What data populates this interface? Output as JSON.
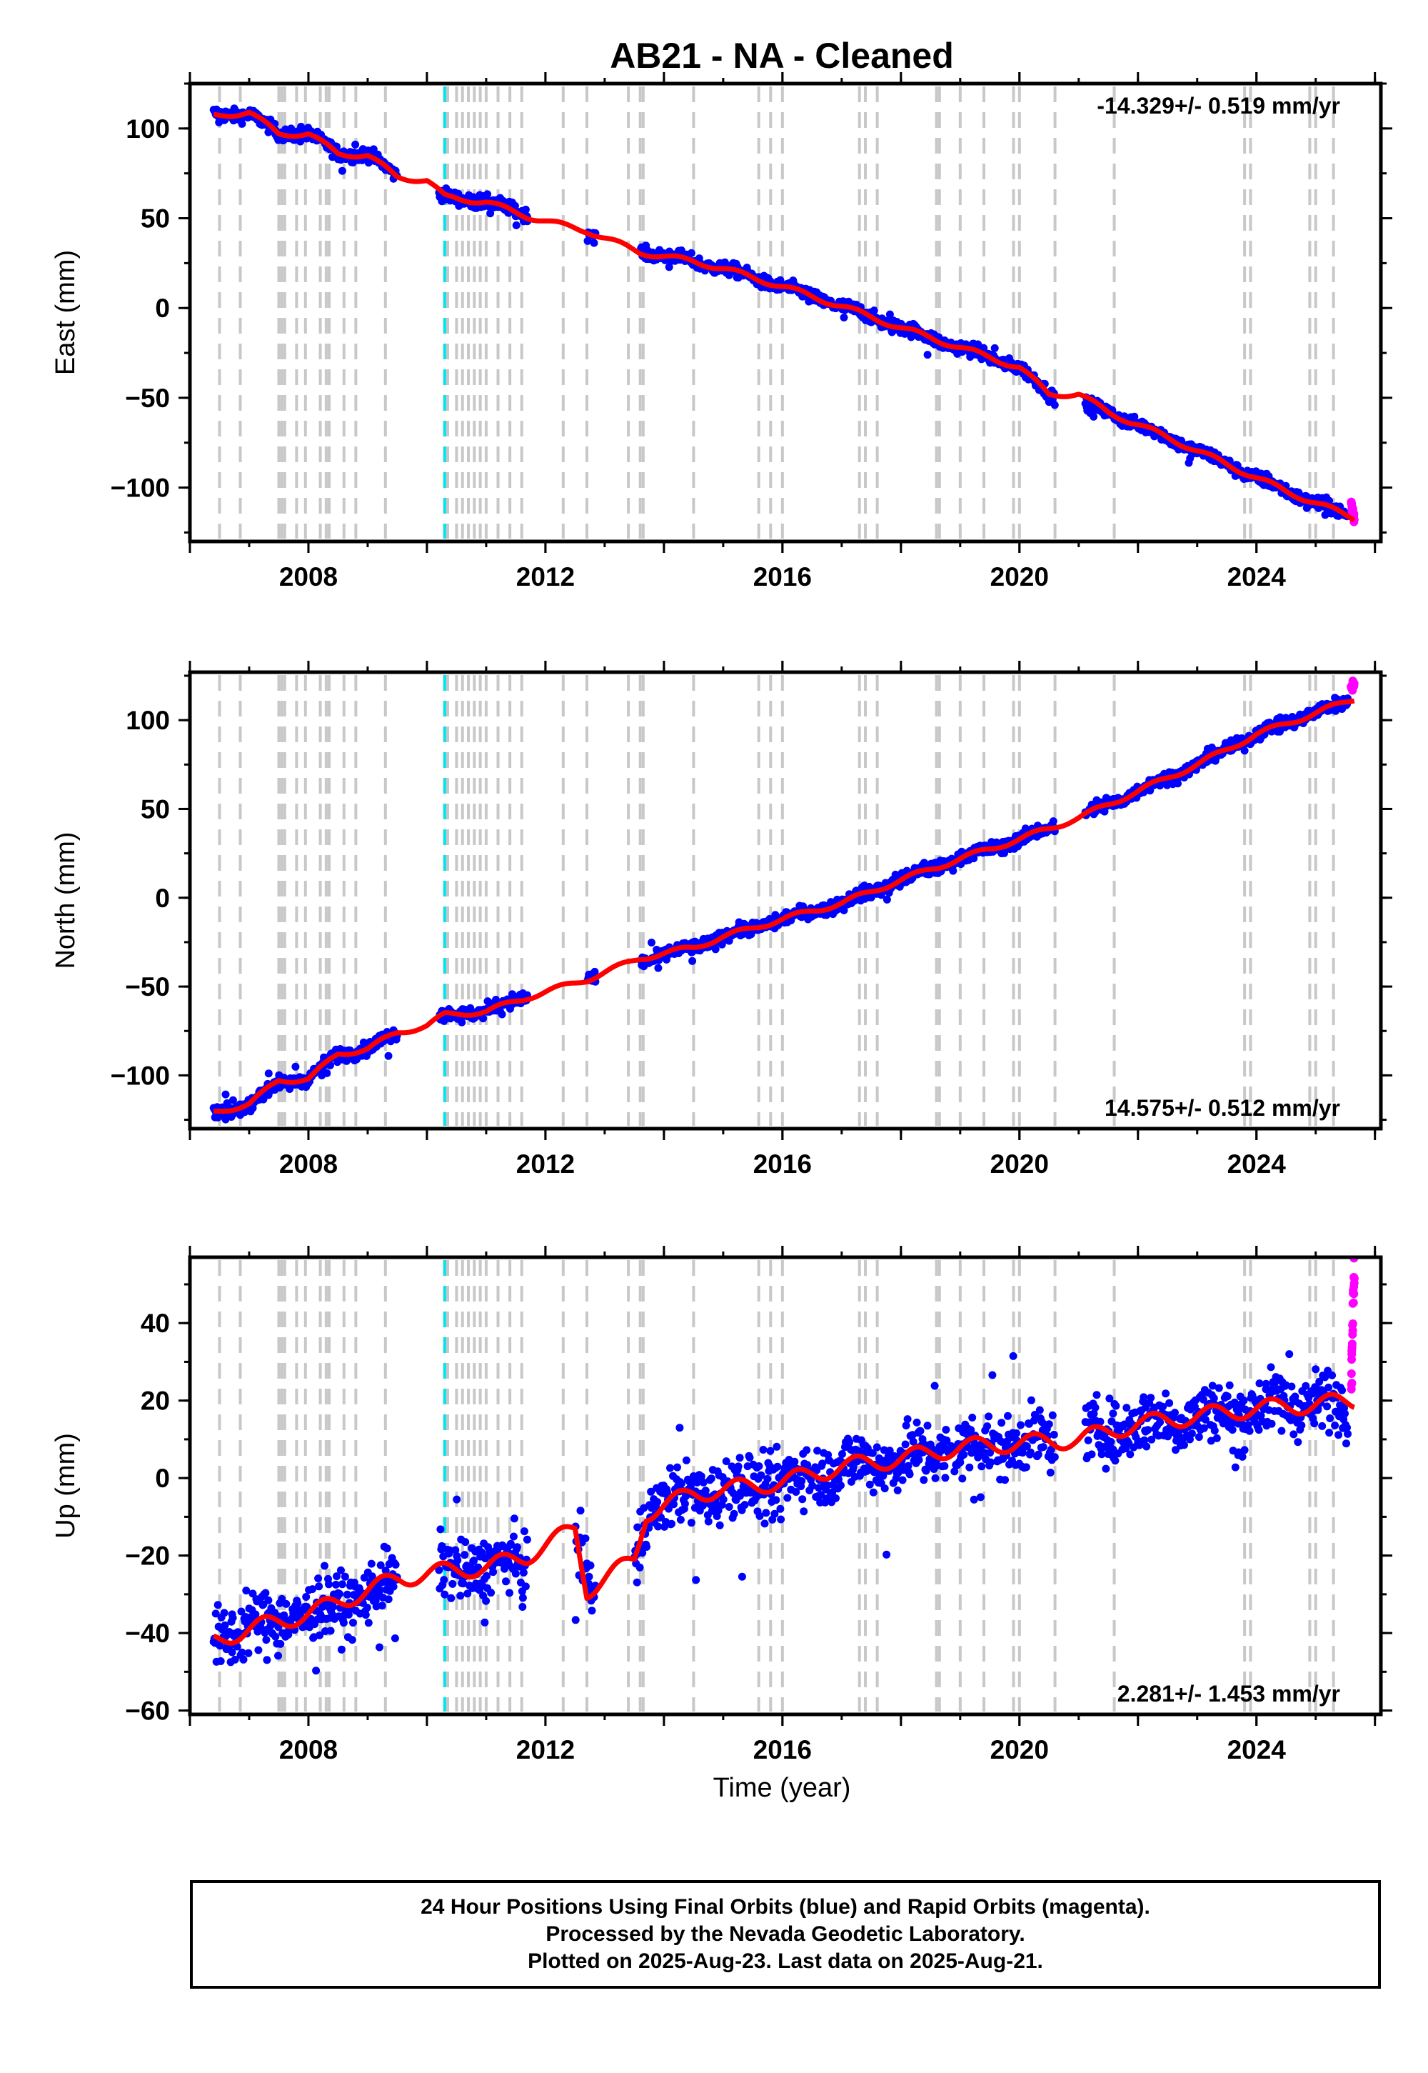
{
  "title": "AB21  - NA - Cleaned",
  "colors": {
    "final_points": "#0000ff",
    "rapid_points": "#ff00ff",
    "model_line": "#ff0000",
    "equipment_change": "#c8c8c8",
    "earthquake": "#00e5ee"
  },
  "xlabel": "Time (year)",
  "footer": {
    "line1": "24 Hour Positions Using Final Orbits (blue) and Rapid Orbits (magenta).",
    "line2": "Processed by the Nevada Geodetic Laboratory.",
    "line3": "Plotted on 2025-Aug-23. Last data on 2025-Aug-21."
  },
  "chart_data": [
    {
      "type": "scatter",
      "ylabel": "East (mm)",
      "xlim": [
        2006.0,
        2026.1
      ],
      "ylim": [
        -130,
        125
      ],
      "xticks": [
        2008,
        2012,
        2016,
        2020,
        2024
      ],
      "yticks": [
        -100,
        -50,
        0,
        50,
        100
      ],
      "rate_label": "-14.329+/- 0.519 mm/yr",
      "rate_position": "top-right",
      "equipment_changes": [
        2006.5,
        2006.85,
        2007.5,
        2007.55,
        2007.6,
        2007.8,
        2007.95,
        2008.2,
        2008.3,
        2008.35,
        2008.6,
        2008.8,
        2009.3,
        2010.3,
        2010.35,
        2010.5,
        2010.6,
        2010.7,
        2010.8,
        2010.9,
        2011.0,
        2011.2,
        2011.4,
        2011.6,
        2012.3,
        2012.7,
        2013.4,
        2013.6,
        2013.65,
        2014.5,
        2015.6,
        2015.8,
        2016.0,
        2017.3,
        2017.4,
        2017.6,
        2018.6,
        2018.65,
        2019.0,
        2019.4,
        2019.9,
        2020.0,
        2020.6,
        2021.6,
        2023.8,
        2023.9,
        2024.9,
        2025.0,
        2025.3
      ],
      "earthquakes": [
        2010.3
      ],
      "gaps": [
        [
          2009.5,
          2010.2
        ],
        [
          2011.7,
          2012.7
        ],
        [
          2012.85,
          2013.6
        ],
        [
          2020.6,
          2021.1
        ]
      ],
      "final": [
        [
          2006.4,
          108
        ],
        [
          2007.0,
          108
        ],
        [
          2007.5,
          97
        ],
        [
          2008.0,
          97
        ],
        [
          2008.5,
          86
        ],
        [
          2009.0,
          86
        ],
        [
          2009.5,
          73
        ],
        [
          2010.3,
          62
        ],
        [
          2011.0,
          59
        ],
        [
          2011.7,
          52
        ],
        [
          2012.7,
          43
        ],
        [
          2013.7,
          31
        ],
        [
          2014.5,
          26
        ],
        [
          2015.0,
          22
        ],
        [
          2016.0,
          12
        ],
        [
          2017.0,
          1
        ],
        [
          2018.0,
          -11
        ],
        [
          2019.0,
          -22
        ],
        [
          2020.0,
          -33
        ],
        [
          2020.5,
          -48
        ],
        [
          2021.5,
          -58
        ],
        [
          2022.5,
          -72
        ],
        [
          2023.5,
          -87
        ],
        [
          2024.5,
          -102
        ],
        [
          2025.55,
          -116
        ]
      ],
      "rapid": [
        [
          2025.6,
          -108
        ],
        [
          2025.65,
          -118
        ]
      ],
      "model": [
        [
          2006.4,
          107
        ],
        [
          2007.0,
          109
        ],
        [
          2007.5,
          97
        ],
        [
          2008.0,
          97
        ],
        [
          2008.5,
          86
        ],
        [
          2009.0,
          85
        ],
        [
          2009.5,
          73
        ],
        [
          2010.0,
          71
        ],
        [
          2010.3,
          62
        ],
        [
          2011.0,
          59
        ],
        [
          2011.7,
          51
        ],
        [
          2012.3,
          46
        ],
        [
          2012.7,
          43
        ],
        [
          2013.6,
          31
        ],
        [
          2014.5,
          26
        ],
        [
          2015.0,
          22
        ],
        [
          2016.0,
          12
        ],
        [
          2017.0,
          1
        ],
        [
          2018.0,
          -11
        ],
        [
          2019.0,
          -22
        ],
        [
          2020.0,
          -33
        ],
        [
          2020.5,
          -48
        ],
        [
          2021.0,
          -48
        ],
        [
          2021.5,
          -58
        ],
        [
          2022.5,
          -72
        ],
        [
          2023.5,
          -87
        ],
        [
          2024.5,
          -102
        ],
        [
          2025.65,
          -117
        ]
      ]
    },
    {
      "type": "scatter",
      "ylabel": "North (mm)",
      "xlim": [
        2006.0,
        2026.1
      ],
      "ylim": [
        -130,
        127
      ],
      "xticks": [
        2008,
        2012,
        2016,
        2020,
        2024
      ],
      "yticks": [
        -100,
        -50,
        0,
        50,
        100
      ],
      "rate_label": "14.575+/- 0.512 mm/yr",
      "rate_position": "bottom-right",
      "equipment_changes": [
        2006.5,
        2006.85,
        2007.5,
        2007.55,
        2007.6,
        2007.8,
        2007.95,
        2008.2,
        2008.3,
        2008.35,
        2008.6,
        2008.8,
        2009.3,
        2010.3,
        2010.35,
        2010.5,
        2010.6,
        2010.7,
        2010.8,
        2010.9,
        2011.0,
        2011.2,
        2011.4,
        2011.6,
        2012.3,
        2012.7,
        2013.4,
        2013.6,
        2013.65,
        2014.5,
        2015.6,
        2015.8,
        2016.0,
        2017.3,
        2017.4,
        2017.6,
        2018.6,
        2018.65,
        2019.0,
        2019.4,
        2019.9,
        2020.0,
        2020.6,
        2021.6,
        2023.8,
        2023.9,
        2024.9,
        2025.0,
        2025.3
      ],
      "earthquakes": [
        2010.3
      ],
      "gaps": [
        [
          2009.5,
          2010.2
        ],
        [
          2011.7,
          2012.7
        ],
        [
          2012.85,
          2013.6
        ],
        [
          2020.6,
          2021.1
        ]
      ],
      "final": [
        [
          2006.4,
          -122
        ],
        [
          2007.0,
          -116
        ],
        [
          2007.5,
          -104
        ],
        [
          2008.0,
          -102
        ],
        [
          2008.5,
          -88
        ],
        [
          2009.0,
          -85
        ],
        [
          2009.5,
          -76
        ],
        [
          2010.3,
          -66
        ],
        [
          2011.0,
          -64
        ],
        [
          2011.7,
          -55
        ],
        [
          2012.7,
          -45
        ],
        [
          2013.7,
          -35
        ],
        [
          2014.5,
          -28
        ],
        [
          2015.0,
          -22
        ],
        [
          2016.0,
          -12
        ],
        [
          2017.0,
          -3
        ],
        [
          2018.0,
          10
        ],
        [
          2019.0,
          22
        ],
        [
          2020.0,
          33
        ],
        [
          2021.0,
          45
        ],
        [
          2022.0,
          60
        ],
        [
          2023.0,
          75
        ],
        [
          2024.0,
          92
        ],
        [
          2025.0,
          105
        ],
        [
          2025.55,
          110
        ]
      ],
      "rapid": [
        [
          2025.6,
          118
        ],
        [
          2025.65,
          121
        ]
      ],
      "model": [
        [
          2006.4,
          -121
        ],
        [
          2007.0,
          -116
        ],
        [
          2007.5,
          -103
        ],
        [
          2008.0,
          -102
        ],
        [
          2008.5,
          -88
        ],
        [
          2009.0,
          -85
        ],
        [
          2009.5,
          -76
        ],
        [
          2010.0,
          -72
        ],
        [
          2010.3,
          -66
        ],
        [
          2011.0,
          -64
        ],
        [
          2011.7,
          -56
        ],
        [
          2012.3,
          -50
        ],
        [
          2012.7,
          -46
        ],
        [
          2013.6,
          -34
        ],
        [
          2014.5,
          -28
        ],
        [
          2015.0,
          -22
        ],
        [
          2016.0,
          -12
        ],
        [
          2017.0,
          -3
        ],
        [
          2018.0,
          10
        ],
        [
          2019.0,
          22
        ],
        [
          2020.0,
          33
        ],
        [
          2021.0,
          45
        ],
        [
          2022.0,
          60
        ],
        [
          2023.0,
          75
        ],
        [
          2024.0,
          92
        ],
        [
          2025.0,
          104
        ],
        [
          2025.65,
          112
        ]
      ]
    },
    {
      "type": "scatter",
      "ylabel": "Up (mm)",
      "xlim": [
        2006.0,
        2026.1
      ],
      "ylim": [
        -61,
        57
      ],
      "xticks": [
        2008,
        2012,
        2016,
        2020,
        2024
      ],
      "yticks": [
        -60,
        -40,
        -20,
        0,
        20,
        40
      ],
      "rate_label": "2.281+/- 1.453 mm/yr",
      "rate_position": "bottom-right",
      "equipment_changes": [
        2006.5,
        2006.85,
        2007.5,
        2007.55,
        2007.6,
        2007.8,
        2007.95,
        2008.2,
        2008.3,
        2008.35,
        2008.6,
        2008.8,
        2009.3,
        2010.3,
        2010.35,
        2010.5,
        2010.6,
        2010.7,
        2010.8,
        2010.9,
        2011.0,
        2011.2,
        2011.4,
        2011.6,
        2012.3,
        2012.7,
        2013.4,
        2013.6,
        2013.65,
        2014.5,
        2015.6,
        2015.8,
        2016.0,
        2017.3,
        2017.4,
        2017.6,
        2018.6,
        2018.65,
        2019.0,
        2019.4,
        2019.9,
        2020.0,
        2020.6,
        2021.6,
        2023.8,
        2023.9,
        2024.9,
        2025.0,
        2025.3
      ],
      "earthquakes": [
        2010.3
      ],
      "gaps": [
        [
          2009.5,
          2010.2
        ],
        [
          2011.7,
          2012.5
        ],
        [
          2012.85,
          2013.5
        ],
        [
          2020.6,
          2021.1
        ]
      ],
      "final": [
        [
          2006.4,
          -42
        ],
        [
          2007.0,
          -38
        ],
        [
          2008.0,
          -35
        ],
        [
          2009.0,
          -30
        ],
        [
          2009.5,
          -26
        ],
        [
          2010.3,
          -24
        ],
        [
          2011.0,
          -23
        ],
        [
          2011.7,
          -21
        ],
        [
          2012.5,
          -15
        ],
        [
          2012.8,
          -28
        ],
        [
          2013.5,
          -22
        ],
        [
          2013.7,
          -8
        ],
        [
          2014.5,
          -4
        ],
        [
          2015.0,
          -3
        ],
        [
          2016.0,
          -1
        ],
        [
          2017.0,
          3
        ],
        [
          2018.0,
          5
        ],
        [
          2019.0,
          8
        ],
        [
          2020.0,
          9
        ],
        [
          2021.0,
          10
        ],
        [
          2022.0,
          14
        ],
        [
          2023.0,
          16
        ],
        [
          2024.0,
          18
        ],
        [
          2025.0,
          20
        ],
        [
          2025.55,
          18
        ]
      ],
      "rapid": [
        [
          2025.6,
          25
        ],
        [
          2025.65,
          54
        ]
      ],
      "model": [
        [
          2006.4,
          -42
        ],
        [
          2007.0,
          -39
        ],
        [
          2008.0,
          -35
        ],
        [
          2009.0,
          -29
        ],
        [
          2009.5,
          -26
        ],
        [
          2010.3,
          -24
        ],
        [
          2011.0,
          -23
        ],
        [
          2011.7,
          -20
        ],
        [
          2012.5,
          -13
        ],
        [
          2012.7,
          -29
        ],
        [
          2013.5,
          -21
        ],
        [
          2013.7,
          -9
        ],
        [
          2014.5,
          -4
        ],
        [
          2015.0,
          -3
        ],
        [
          2016.0,
          -1
        ],
        [
          2017.0,
          3
        ],
        [
          2018.0,
          5
        ],
        [
          2019.0,
          8
        ],
        [
          2020.0,
          9
        ],
        [
          2021.0,
          10
        ],
        [
          2022.0,
          14
        ],
        [
          2023.0,
          16
        ],
        [
          2024.0,
          18
        ],
        [
          2025.0,
          19
        ],
        [
          2025.65,
          20
        ]
      ]
    }
  ]
}
